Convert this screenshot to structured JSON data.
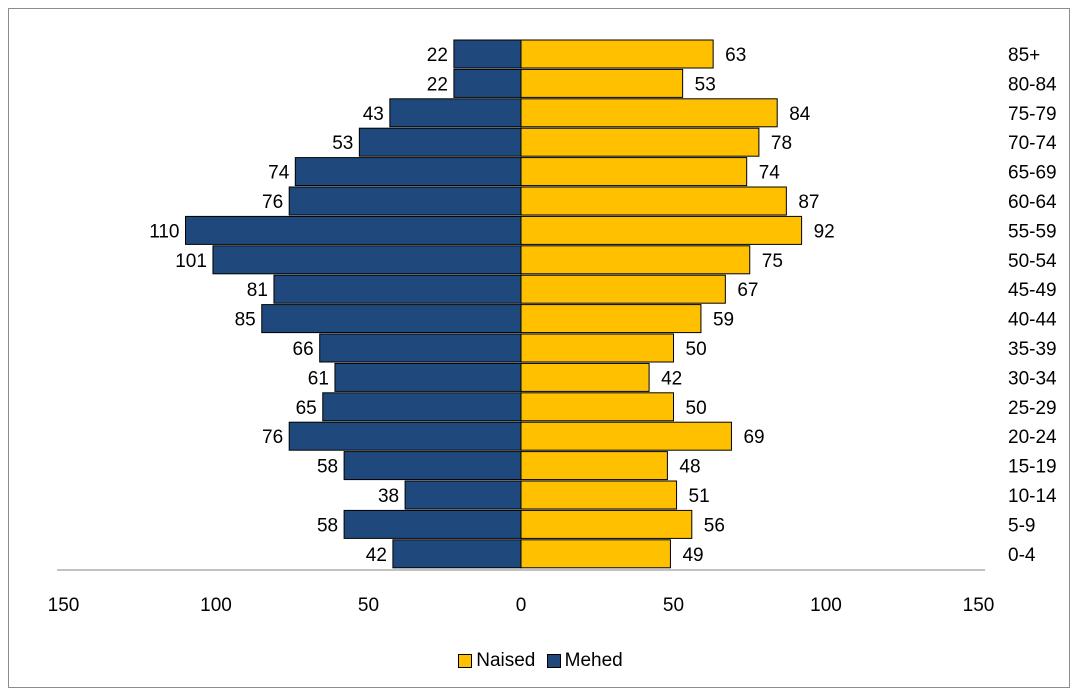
{
  "chart_data": {
    "type": "bar",
    "orientation": "horizontal",
    "categories": [
      "85+",
      "80-84",
      "75-79",
      "70-74",
      "65-69",
      "60-64",
      "55-59",
      "50-54",
      "45-49",
      "40-44",
      "35-39",
      "30-34",
      "25-29",
      "20-24",
      "15-19",
      "10-14",
      "5-9",
      "0-4"
    ],
    "series": [
      {
        "name": "Naised",
        "color": "#ffc000",
        "side": "right",
        "values": [
          63,
          53,
          84,
          78,
          74,
          87,
          92,
          75,
          67,
          59,
          50,
          42,
          50,
          69,
          48,
          51,
          56,
          49
        ]
      },
      {
        "name": "Mehed",
        "color": "#1f497d",
        "side": "left",
        "values": [
          22,
          22,
          43,
          53,
          74,
          76,
          110,
          101,
          81,
          85,
          66,
          61,
          65,
          76,
          58,
          38,
          58,
          42
        ]
      }
    ],
    "xticks": [
      "150",
      "100",
      "50",
      "0",
      "50",
      "100",
      "150"
    ],
    "xlim": [
      -150,
      150
    ],
    "legend_position": "bottom",
    "grid": false
  }
}
